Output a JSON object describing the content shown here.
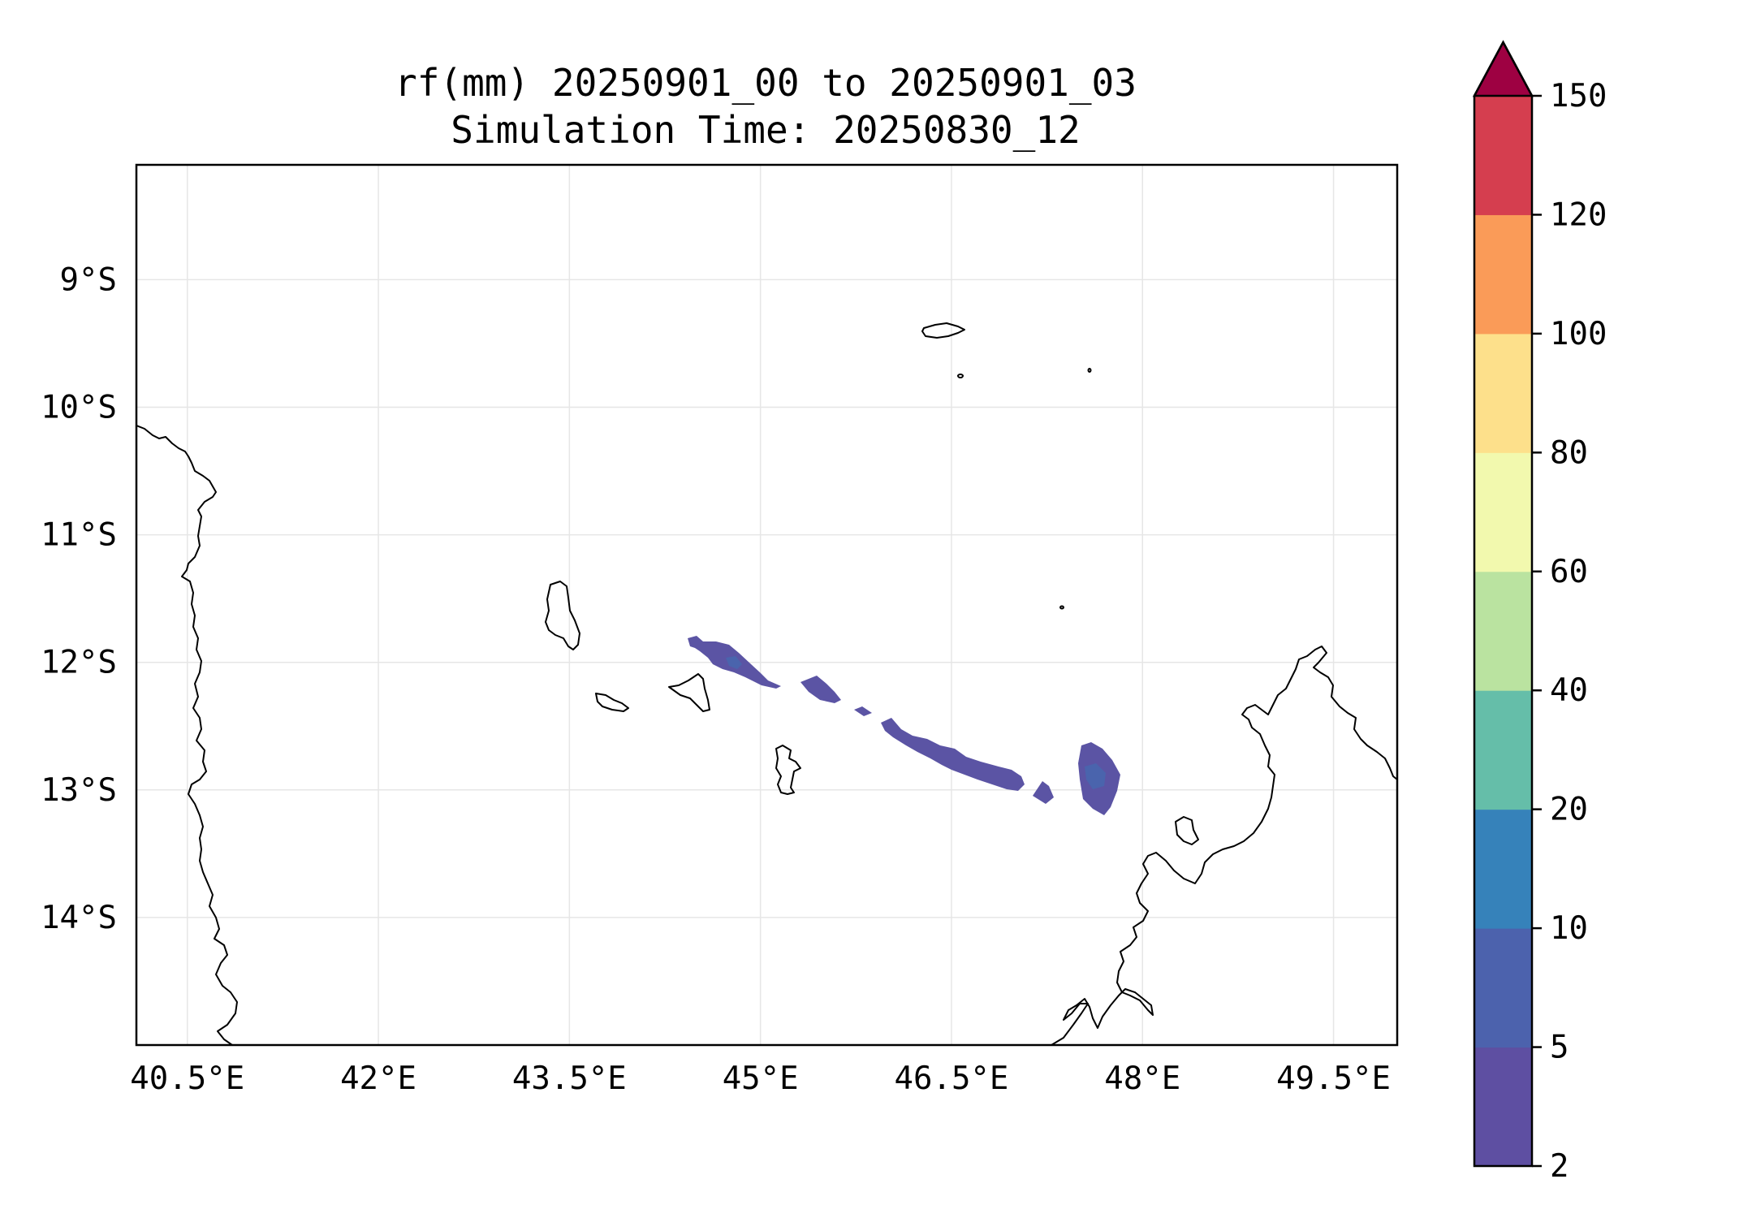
{
  "title": {
    "line1": "rf(mm) 20250901_00 to 20250901_03",
    "line2": "Simulation Time: 20250830_12"
  },
  "map": {
    "lon_range": [
      40.1,
      50.0
    ],
    "lat_range": [
      -15.0,
      -8.1
    ],
    "lon_ticks": [
      {
        "value": 40.5,
        "label": "40.5°E"
      },
      {
        "value": 42.0,
        "label": "42°E"
      },
      {
        "value": 43.5,
        "label": "43.5°E"
      },
      {
        "value": 45.0,
        "label": "45°E"
      },
      {
        "value": 46.5,
        "label": "46.5°E"
      },
      {
        "value": 48.0,
        "label": "48°E"
      },
      {
        "value": 49.5,
        "label": "49.5°E"
      }
    ],
    "lat_ticks": [
      {
        "value": -9,
        "label": "9°S"
      },
      {
        "value": -10,
        "label": "10°S"
      },
      {
        "value": -11,
        "label": "11°S"
      },
      {
        "value": -12,
        "label": "12°S"
      },
      {
        "value": -13,
        "label": "13°S"
      },
      {
        "value": -14,
        "label": "14°S"
      }
    ],
    "rain_color": "#5b54a4",
    "rain_core_color": "#4a64ad"
  },
  "colorbar": {
    "levels": [
      {
        "label": "2",
        "color": "#5e4fa2"
      },
      {
        "label": "5",
        "color": "#4c62ad"
      },
      {
        "label": "10",
        "color": "#3682ba"
      },
      {
        "label": "20",
        "color": "#65bea9"
      },
      {
        "label": "40",
        "color": "#bae3a0"
      },
      {
        "label": "60",
        "color": "#f2f9ae"
      },
      {
        "label": "80",
        "color": "#fde08b"
      },
      {
        "label": "100",
        "color": "#fa9b58"
      },
      {
        "label": "120",
        "color": "#d53e4f"
      },
      {
        "label": "150"
      }
    ],
    "extend_color": "#9e0142"
  }
}
